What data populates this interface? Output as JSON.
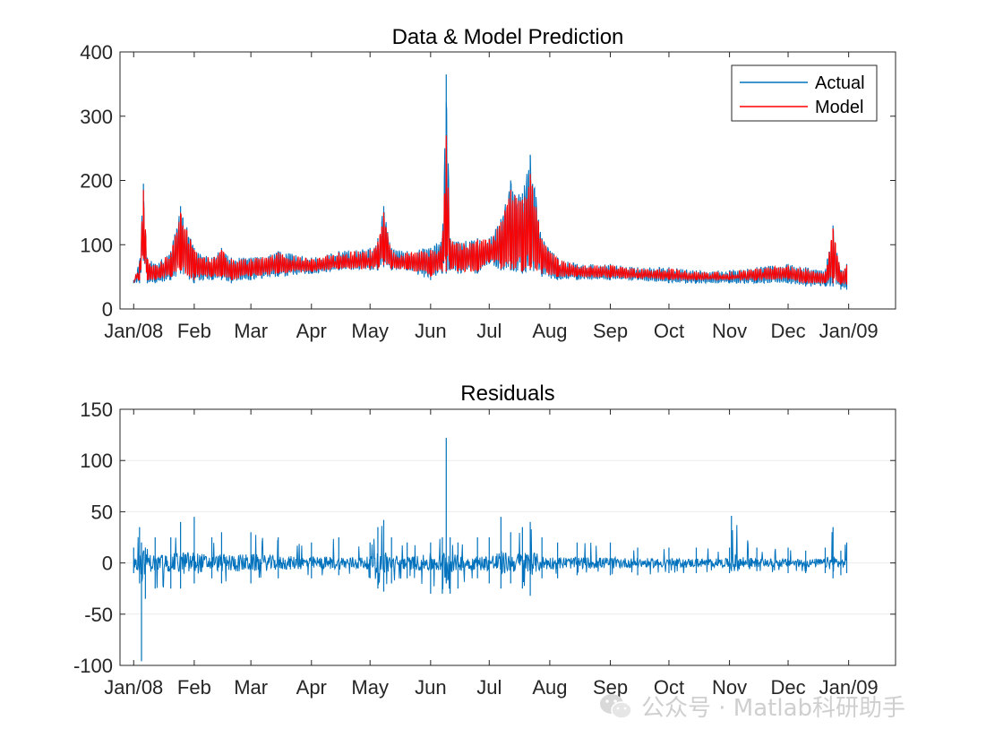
{
  "chart_data": [
    {
      "type": "line",
      "title": "Data & Model Prediction",
      "xlabel": "",
      "ylabel": "",
      "xlim": [
        "2007-12-25",
        "2009-01-25"
      ],
      "ylim": [
        0,
        400
      ],
      "yticks": [
        0,
        100,
        200,
        300,
        400
      ],
      "xtick_dates": [
        "2008-01-01",
        "2008-02-01",
        "2008-03-01",
        "2008-04-01",
        "2008-05-01",
        "2008-06-01",
        "2008-07-01",
        "2008-08-01",
        "2008-09-01",
        "2008-10-01",
        "2008-11-01",
        "2008-12-01",
        "2009-01-01"
      ],
      "xtick_labels": [
        "Jan/08",
        "Feb",
        "Mar",
        "Apr",
        "May",
        "Jun",
        "Jul",
        "Aug",
        "Sep",
        "Oct",
        "Nov",
        "Dec",
        "Jan/09"
      ],
      "grid": false,
      "legend": "top-right",
      "series": [
        {
          "name": "Actual",
          "color": "#0072BD",
          "x": [
            "2008-01-01",
            "2008-01-04",
            "2008-01-06",
            "2008-01-08",
            "2008-01-12",
            "2008-01-20",
            "2008-01-25",
            "2008-02-01",
            "2008-02-10",
            "2008-02-15",
            "2008-02-20",
            "2008-03-01",
            "2008-03-15",
            "2008-04-01",
            "2008-04-15",
            "2008-05-01",
            "2008-05-05",
            "2008-05-08",
            "2008-05-12",
            "2008-05-20",
            "2008-06-01",
            "2008-06-07",
            "2008-06-09",
            "2008-06-11",
            "2008-06-15",
            "2008-06-25",
            "2008-07-01",
            "2008-07-07",
            "2008-07-12",
            "2008-07-18",
            "2008-07-22",
            "2008-07-28",
            "2008-08-05",
            "2008-08-15",
            "2008-09-01",
            "2008-09-15",
            "2008-10-01",
            "2008-10-15",
            "2008-11-01",
            "2008-11-15",
            "2008-12-01",
            "2008-12-10",
            "2008-12-20",
            "2008-12-24",
            "2008-12-28",
            "2008-12-31"
          ],
          "values": [
            45,
            75,
            195,
            80,
            70,
            90,
            160,
            95,
            80,
            95,
            80,
            80,
            90,
            80,
            90,
            95,
            110,
            160,
            95,
            90,
            95,
            110,
            365,
            110,
            105,
            110,
            110,
            140,
            200,
            180,
            240,
            110,
            80,
            70,
            70,
            65,
            65,
            60,
            60,
            65,
            70,
            65,
            60,
            130,
            60,
            70
          ],
          "low": [
            40,
            40,
            75,
            40,
            40,
            45,
            55,
            40,
            45,
            45,
            40,
            45,
            50,
            55,
            60,
            60,
            60,
            65,
            60,
            60,
            45,
            55,
            55,
            60,
            55,
            55,
            70,
            60,
            60,
            55,
            60,
            50,
            45,
            45,
            45,
            45,
            40,
            40,
            40,
            40,
            40,
            35,
            35,
            35,
            30,
            30
          ]
        },
        {
          "name": "Model",
          "color": "#FF0000",
          "x": [
            "2008-01-01",
            "2008-01-04",
            "2008-01-06",
            "2008-01-08",
            "2008-01-12",
            "2008-01-20",
            "2008-01-25",
            "2008-02-01",
            "2008-02-10",
            "2008-02-15",
            "2008-02-20",
            "2008-03-01",
            "2008-03-15",
            "2008-04-01",
            "2008-04-15",
            "2008-05-01",
            "2008-05-05",
            "2008-05-08",
            "2008-05-12",
            "2008-05-20",
            "2008-06-01",
            "2008-06-07",
            "2008-06-09",
            "2008-06-11",
            "2008-06-15",
            "2008-06-25",
            "2008-07-01",
            "2008-07-07",
            "2008-07-12",
            "2008-07-18",
            "2008-07-22",
            "2008-07-28",
            "2008-08-05",
            "2008-08-15",
            "2008-09-01",
            "2008-09-15",
            "2008-10-01",
            "2008-10-15",
            "2008-11-01",
            "2008-11-15",
            "2008-12-01",
            "2008-12-10",
            "2008-12-20",
            "2008-12-24",
            "2008-12-28",
            "2008-12-31"
          ],
          "values": [
            45,
            70,
            185,
            78,
            68,
            88,
            150,
            92,
            78,
            92,
            78,
            78,
            88,
            78,
            88,
            92,
            105,
            150,
            92,
            88,
            92,
            105,
            270,
            108,
            102,
            108,
            108,
            135,
            185,
            170,
            210,
            108,
            78,
            68,
            68,
            63,
            63,
            58,
            58,
            63,
            68,
            63,
            58,
            125,
            58,
            68
          ],
          "low": [
            45,
            45,
            78,
            45,
            45,
            50,
            60,
            45,
            50,
            50,
            45,
            50,
            55,
            58,
            62,
            62,
            62,
            68,
            62,
            62,
            50,
            58,
            58,
            62,
            58,
            58,
            72,
            62,
            62,
            58,
            62,
            55,
            50,
            50,
            48,
            48,
            45,
            45,
            45,
            45,
            45,
            40,
            40,
            40,
            38,
            38
          ]
        }
      ]
    },
    {
      "type": "line",
      "title": "Residuals",
      "xlabel": "",
      "ylabel": "",
      "xlim": [
        "2007-12-25",
        "2009-01-25"
      ],
      "ylim": [
        -100,
        150
      ],
      "yticks": [
        -100,
        -50,
        0,
        50,
        100,
        150
      ],
      "xtick_dates": [
        "2008-01-01",
        "2008-02-01",
        "2008-03-01",
        "2008-04-01",
        "2008-05-01",
        "2008-06-01",
        "2008-07-01",
        "2008-08-01",
        "2008-09-01",
        "2008-10-01",
        "2008-11-01",
        "2008-12-01",
        "2009-01-01"
      ],
      "xtick_labels": [
        "Jan/08",
        "Feb",
        "Mar",
        "Apr",
        "May",
        "Jun",
        "Jul",
        "Aug",
        "Sep",
        "Oct",
        "Nov",
        "Dec",
        "Jan/09"
      ],
      "grid": true,
      "legend": "none",
      "series": [
        {
          "color": "#0072BD",
          "x": [
            "2008-01-01",
            "2008-01-04",
            "2008-01-05",
            "2008-01-07",
            "2008-01-12",
            "2008-01-20",
            "2008-01-25",
            "2008-02-01",
            "2008-02-10",
            "2008-02-15",
            "2008-03-01",
            "2008-03-15",
            "2008-04-01",
            "2008-04-15",
            "2008-05-01",
            "2008-05-05",
            "2008-05-08",
            "2008-05-12",
            "2008-05-20",
            "2008-06-01",
            "2008-06-07",
            "2008-06-09",
            "2008-06-11",
            "2008-06-15",
            "2008-06-25",
            "2008-07-01",
            "2008-07-07",
            "2008-07-12",
            "2008-07-18",
            "2008-07-22",
            "2008-07-28",
            "2008-08-05",
            "2008-08-15",
            "2008-09-01",
            "2008-09-15",
            "2008-10-01",
            "2008-10-15",
            "2008-11-01",
            "2008-11-02",
            "2008-11-15",
            "2008-12-01",
            "2008-12-10",
            "2008-12-20",
            "2008-12-24",
            "2008-12-28",
            "2008-12-31"
          ],
          "high": [
            15,
            35,
            20,
            15,
            25,
            25,
            40,
            45,
            25,
            30,
            30,
            25,
            20,
            25,
            20,
            35,
            42,
            25,
            20,
            20,
            25,
            122,
            25,
            20,
            25,
            25,
            45,
            30,
            35,
            40,
            25,
            20,
            20,
            20,
            15,
            15,
            15,
            15,
            46,
            15,
            15,
            12,
            15,
            35,
            12,
            20
          ],
          "low": [
            -10,
            -20,
            -96,
            -35,
            -25,
            -25,
            -25,
            -20,
            -15,
            -20,
            -20,
            -15,
            -15,
            -12,
            -15,
            -25,
            -28,
            -20,
            -15,
            -30,
            -30,
            -20,
            -30,
            -25,
            -15,
            -20,
            -25,
            -20,
            -25,
            -32,
            -15,
            -15,
            -12,
            -12,
            -12,
            -10,
            -10,
            -10,
            -8,
            -8,
            -10,
            -10,
            -10,
            -15,
            -12,
            -10
          ]
        }
      ]
    }
  ],
  "legend": {
    "actual_label": "Actual",
    "model_label": "Model"
  },
  "watermark": {
    "icon": "wechat-icon",
    "text": "公众号 · Matlab科研助手"
  }
}
